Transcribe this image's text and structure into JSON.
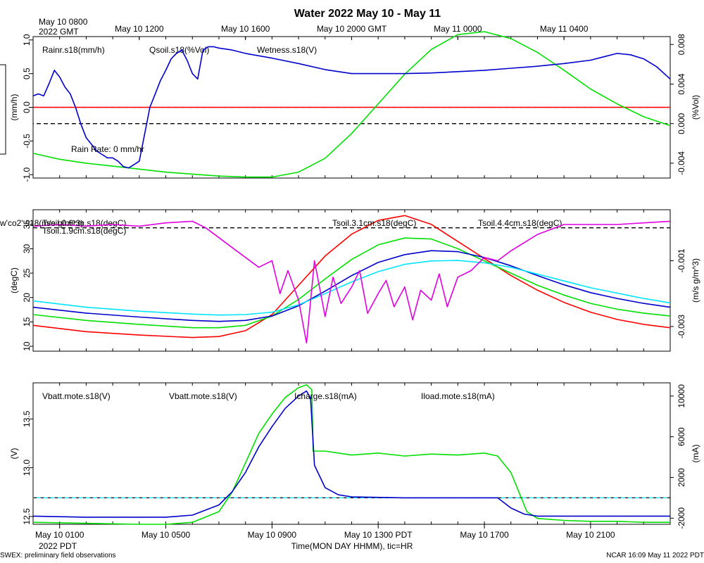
{
  "title": "Water 2022 May 10 - May 11",
  "top_axis": {
    "corner_label_line1": "May 10 0800",
    "corner_label_line2": "2022 GMT",
    "ticks": [
      {
        "hour": 4,
        "label": "May 10 1200"
      },
      {
        "hour": 8,
        "label": "May 10 1600"
      },
      {
        "hour": 12,
        "label": "May 10 2000 GMT"
      },
      {
        "hour": 16,
        "label": "May 11 0000"
      },
      {
        "hour": 20,
        "label": "May 11 0400"
      }
    ]
  },
  "bottom_axis": {
    "corner_label": "2022 PDT",
    "xlabel": "Time(MON DAY HHMM), tic=HR",
    "ticks": [
      {
        "hour": 1,
        "label": "May 10 0100"
      },
      {
        "hour": 5,
        "label": "May 10 0500"
      },
      {
        "hour": 9,
        "label": "May 10 0900"
      },
      {
        "hour": 13,
        "label": "May 10 1300 PDT"
      },
      {
        "hour": 17,
        "label": "May 10 1700"
      },
      {
        "hour": 21,
        "label": "May 10 2100"
      }
    ]
  },
  "footer": {
    "left": "SWEX: preliminary field observations",
    "right": "NCAR 16:09 May 11 2022 PDT"
  },
  "colors": {
    "red": "#ff0000",
    "green": "#00e000",
    "blue": "#0000cc",
    "cyan": "#00e5ff",
    "magenta": "#e000e0",
    "black": "#000000"
  },
  "chart_data": [
    {
      "type": "line",
      "panel": "water",
      "x_unit": "hours PDT",
      "xlim": [
        0,
        24
      ],
      "ylabel_left": "(mm/h)",
      "ylim_left": [
        -1.05,
        1.05
      ],
      "yticks_left": [
        "1.0",
        "0.5",
        "0.0",
        "-0.5",
        "-1.0"
      ],
      "ytick_values_left": [
        1.0,
        0.5,
        0.0,
        -0.5,
        -1.0
      ],
      "ylabel_right": "(%Vol)",
      "ylim_right": [
        -0.0055,
        0.0088
      ],
      "yticks_right": [
        "0.008",
        "0.004",
        "0.000",
        "-0.004"
      ],
      "ytick_values_right": [
        0.008,
        0.004,
        0.0,
        -0.004
      ],
      "reference_lines": [
        {
          "axis": "left",
          "value": 0.0,
          "color": "#ff0000",
          "style": "dashed"
        },
        {
          "axis": "right",
          "value": 0.0,
          "color": "#000000",
          "style": "dashed"
        }
      ],
      "annotation": "Rain Rate: 0 mm/hr",
      "series": [
        {
          "name": "Rainr.s18(mm/h)",
          "axis": "left",
          "color": "#ff0000",
          "x": [
            0,
            24
          ],
          "y": [
            0,
            0
          ]
        },
        {
          "name": "Qsoil.s18(%Vol)",
          "axis": "right",
          "color": "#00e000",
          "x": [
            0,
            1,
            2,
            3,
            4,
            5,
            6,
            7,
            8,
            9,
            10,
            11,
            12,
            13,
            14,
            15,
            16,
            17,
            18,
            19,
            20,
            21,
            22,
            23,
            24
          ],
          "y": [
            -0.003,
            -0.0036,
            -0.004,
            -0.0043,
            -0.0046,
            -0.0049,
            -0.0051,
            -0.0053,
            -0.0054,
            -0.0054,
            -0.0049,
            -0.0035,
            -0.001,
            0.002,
            0.005,
            0.0075,
            0.009,
            0.0093,
            0.0086,
            0.0072,
            0.0054,
            0.0035,
            0.002,
            0.0007,
            -0.0002
          ]
        },
        {
          "name": "Wetness.s18(V)",
          "axis": "left",
          "color": "#0000cc",
          "x": [
            0,
            0.2,
            0.4,
            0.6,
            0.8,
            1.0,
            1.2,
            1.4,
            1.6,
            1.8,
            2.0,
            2.2,
            2.4,
            2.6,
            2.8,
            3.0,
            3.2,
            3.4,
            3.6,
            3.8,
            4.0,
            4.2,
            4.4,
            4.6,
            4.8,
            5.0,
            5.2,
            5.4,
            5.6,
            5.8,
            6.0,
            6.2,
            6.4,
            6.6,
            6.8,
            7.0,
            7.5,
            8,
            9,
            10,
            11,
            12,
            13,
            14,
            15,
            16,
            17,
            18,
            19,
            20,
            21,
            21.5,
            22,
            22.5,
            23,
            23.5,
            24
          ],
          "y": [
            0.17,
            0.2,
            0.17,
            0.35,
            0.55,
            0.45,
            0.3,
            0.2,
            0.0,
            -0.25,
            -0.45,
            -0.55,
            -0.65,
            -0.7,
            -0.75,
            -0.75,
            -0.8,
            -0.88,
            -0.9,
            -0.85,
            -0.8,
            -0.4,
            0.0,
            0.2,
            0.4,
            0.55,
            0.72,
            0.8,
            0.85,
            0.7,
            0.5,
            0.42,
            0.85,
            0.9,
            0.9,
            0.88,
            0.85,
            0.8,
            0.73,
            0.65,
            0.56,
            0.5,
            0.5,
            0.5,
            0.51,
            0.53,
            0.55,
            0.58,
            0.61,
            0.65,
            0.7,
            0.75,
            0.8,
            0.78,
            0.72,
            0.6,
            0.42
          ]
        }
      ]
    },
    {
      "type": "line",
      "panel": "soil_temperature",
      "x_unit": "hours PDT",
      "xlim": [
        0,
        24
      ],
      "ylabel_left": "(degC)",
      "ylim_left": [
        9,
        38
      ],
      "yticks_left": [
        "35",
        "30",
        "25",
        "20",
        "15",
        "10"
      ],
      "ytick_values_left": [
        35,
        30,
        25,
        20,
        15,
        10
      ],
      "ylabel_right": "(m/s g/m^3)",
      "ylim_right": [
        -0.00375,
        0.00055
      ],
      "yticks_right": [
        "-0.001",
        "-0.003"
      ],
      "ytick_values_right": [
        -0.001,
        -0.003
      ],
      "reference_lines": [
        {
          "axis": "right",
          "value": 0.0,
          "color": "#000000",
          "style": "dashed"
        }
      ],
      "series": [
        {
          "name": "Tsoil.0.6cm.s18(degC)",
          "axis": "left",
          "color": "#ff0000",
          "x": [
            0,
            2,
            4,
            6,
            7,
            8,
            9,
            10,
            11,
            12,
            13,
            14,
            15,
            16,
            17,
            18,
            19,
            20,
            21,
            22,
            23,
            24
          ],
          "y": [
            14.3,
            13.0,
            12.3,
            11.8,
            12.0,
            13.2,
            16.5,
            22.5,
            28.5,
            33.0,
            35.8,
            36.8,
            35.0,
            31.5,
            28.0,
            24.5,
            21.5,
            19.0,
            17.0,
            15.5,
            14.5,
            13.8
          ]
        },
        {
          "name": "Tsoil.1.9cm.s18(degC)",
          "axis": "left",
          "color": "#00e000",
          "x": [
            0,
            2,
            4,
            6,
            7,
            8,
            9,
            10,
            11,
            12,
            13,
            14,
            15,
            16,
            17,
            18,
            19,
            20,
            21,
            22,
            23,
            24
          ],
          "y": [
            16.5,
            15.3,
            14.5,
            13.8,
            13.8,
            14.3,
            16.2,
            19.6,
            23.8,
            27.8,
            30.8,
            32.2,
            32.0,
            30.0,
            27.5,
            25.0,
            22.5,
            20.5,
            18.8,
            17.6,
            16.8,
            16.2
          ]
        },
        {
          "name": "Tsoil.3.1cm.s18(degC)",
          "axis": "left",
          "color": "#0000cc",
          "x": [
            0,
            2,
            4,
            6,
            7,
            8,
            9,
            10,
            11,
            12,
            13,
            14,
            15,
            16,
            17,
            18,
            19,
            20,
            21,
            22,
            23,
            24
          ],
          "y": [
            18.0,
            16.8,
            16.0,
            15.3,
            15.1,
            15.3,
            16.2,
            18.3,
            21.3,
            24.5,
            27.2,
            28.8,
            29.6,
            29.4,
            28.2,
            26.5,
            24.5,
            22.6,
            21.0,
            19.8,
            18.8,
            18.0
          ]
        },
        {
          "name": "Tsoil.4.4cm.s18(degC)",
          "axis": "left",
          "color": "#00e5ff",
          "x": [
            0,
            2,
            4,
            6,
            7,
            8,
            9,
            10,
            11,
            12,
            13,
            14,
            15,
            16,
            17,
            18,
            19,
            20,
            21,
            22,
            23,
            24
          ],
          "y": [
            19.3,
            18.0,
            17.2,
            16.6,
            16.4,
            16.5,
            17.0,
            18.5,
            20.8,
            23.2,
            25.3,
            26.8,
            27.5,
            27.6,
            27.1,
            26.2,
            24.8,
            23.4,
            22.0,
            20.9,
            19.8,
            18.9
          ]
        },
        {
          "name": "w'co2'.s18(m/s g/m^3)",
          "axis": "right",
          "color": "#e000e0",
          "x": [
            0,
            1,
            2,
            3,
            4,
            5,
            6,
            6.5,
            7,
            7.5,
            8,
            8.5,
            9,
            9.3,
            9.6,
            10,
            10.3,
            10.6,
            11,
            11.3,
            11.6,
            12,
            12.3,
            12.6,
            13,
            13.3,
            13.6,
            14,
            14.3,
            14.6,
            15,
            15.3,
            15.6,
            16,
            16.5,
            17,
            17.5,
            18,
            19,
            20,
            21,
            22,
            23,
            24
          ],
          "y": [
            5e-05,
            0.0001,
            5e-05,
            0.0001,
            5e-05,
            0.00015,
            0.0002,
            0.0,
            -0.0003,
            -0.0006,
            -0.0009,
            -0.0012,
            -0.001,
            -0.002,
            -0.0013,
            -0.0022,
            -0.0035,
            -0.001,
            -0.0027,
            -0.0015,
            -0.0023,
            -0.0018,
            -0.0013,
            -0.0026,
            -0.002,
            -0.0016,
            -0.0024,
            -0.0018,
            -0.0028,
            -0.0019,
            -0.0022,
            -0.0014,
            -0.0024,
            -0.0015,
            -0.0013,
            -0.0009,
            -0.001,
            -0.0007,
            -0.0002,
            0.0001,
            0.0001,
            0.0001,
            0.00015,
            0.0002
          ]
        }
      ]
    },
    {
      "type": "line",
      "panel": "power",
      "x_unit": "hours PDT",
      "xlim": [
        0,
        24
      ],
      "ylabel_left": "(V)",
      "ylim_left": [
        12.42,
        13.87
      ],
      "yticks_left": [
        "13.5",
        "13.0",
        "12.5"
      ],
      "ytick_values_left": [
        13.5,
        13.0,
        12.5
      ],
      "ylabel_right": "(mA)",
      "ylim_right": [
        -2600,
        11300
      ],
      "yticks_right": [
        "10000",
        "6000",
        "2000",
        "-2000"
      ],
      "ytick_values_right": [
        10000,
        6000,
        2000,
        -2000
      ],
      "reference_lines": [
        {
          "axis": "right",
          "value": 0,
          "color": "#000000",
          "style": "dashed"
        },
        {
          "axis": "right",
          "value": 0,
          "color": "#00e5ff",
          "style": "dashed"
        }
      ],
      "series": [
        {
          "name": "Vbatt.mote.s18(V)",
          "axis": "left",
          "color": "#ff0000",
          "x": [],
          "y": []
        },
        {
          "name": "Vbatt.mote.s18(V)",
          "axis": "left",
          "color": "#00e000",
          "x": [
            0,
            2,
            4,
            5,
            6,
            7,
            7.5,
            8,
            8.5,
            9,
            9.5,
            10,
            10.3,
            10.5,
            10.55,
            11,
            12,
            13,
            14,
            15,
            16,
            17,
            17.5,
            18,
            18.3,
            18.6,
            19,
            20,
            21,
            22,
            23,
            24
          ],
          "y": [
            12.44,
            12.43,
            12.42,
            12.42,
            12.44,
            12.55,
            12.75,
            13.05,
            13.35,
            13.55,
            13.72,
            13.82,
            13.85,
            13.8,
            13.17,
            13.17,
            13.13,
            13.15,
            13.12,
            13.14,
            13.13,
            13.15,
            13.12,
            12.95,
            12.75,
            12.55,
            12.48,
            12.46,
            12.45,
            12.45,
            12.44,
            12.44
          ]
        },
        {
          "name": "Icharge.s18(mA)",
          "axis": "right",
          "color": "#0000cc",
          "x": [
            0,
            2,
            4,
            5,
            6,
            7,
            7.5,
            8,
            8.5,
            9,
            9.5,
            10,
            10.3,
            10.45,
            10.6,
            11,
            11.5,
            12,
            14,
            16,
            17.5,
            18,
            18.5,
            19,
            20,
            22,
            24
          ],
          "y": [
            -1800,
            -1900,
            -1900,
            -1900,
            -1700,
            -700,
            600,
            2500,
            5000,
            7000,
            8800,
            10000,
            10500,
            9800,
            3200,
            1000,
            300,
            100,
            0,
            0,
            0,
            -1000,
            -1600,
            -1800,
            -1800,
            -1800,
            -1800
          ]
        },
        {
          "name": "Iload.mote.s18(mA)",
          "axis": "right",
          "color": "#00e5ff",
          "x": [],
          "y": []
        }
      ]
    }
  ]
}
